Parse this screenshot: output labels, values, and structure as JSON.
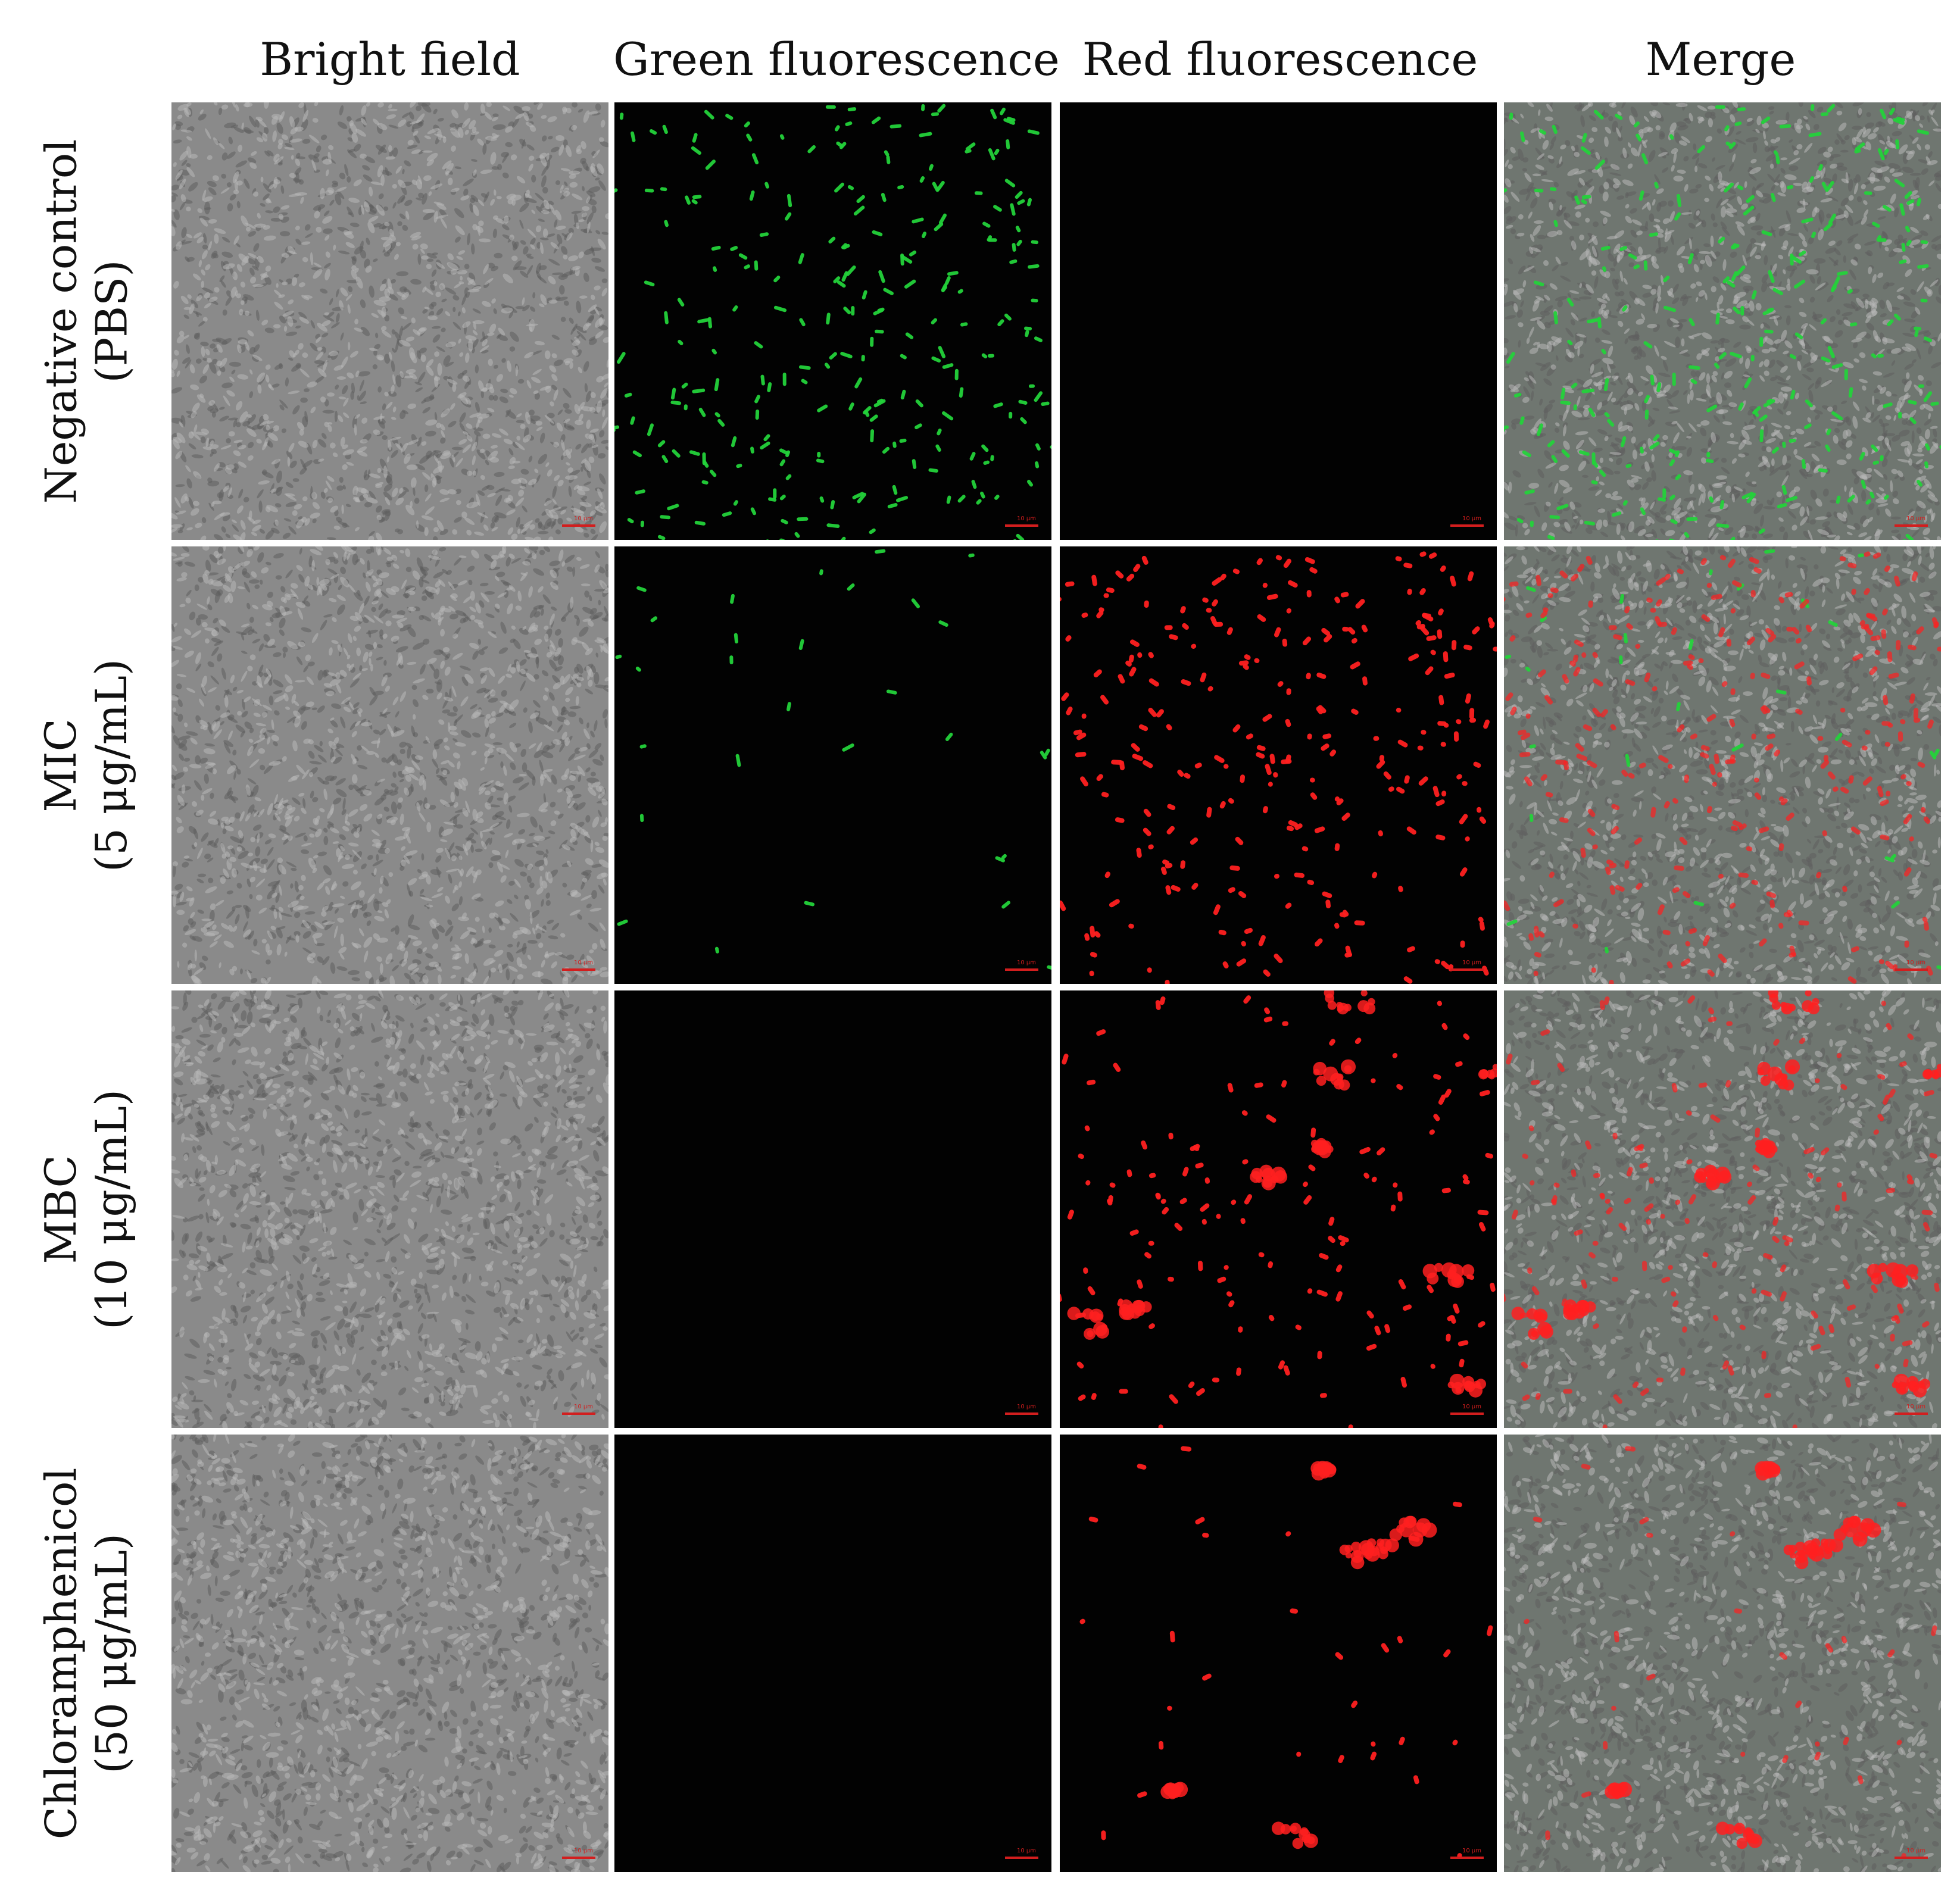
{
  "columns": [
    {
      "label": "Bright field"
    },
    {
      "label": "Green fluorescence"
    },
    {
      "label": "Red fluorescence"
    },
    {
      "label": "Merge"
    }
  ],
  "rows": [
    {
      "line1": "Negative control",
      "line2": "(PBS)",
      "green": "high",
      "red": "none"
    },
    {
      "line1": "MIC",
      "line2": "(5 μg/mL)",
      "green": "low",
      "red": "high"
    },
    {
      "line1": "MBC",
      "line2": "(10 μg/mL)",
      "green": "none",
      "red": "medium-clusters"
    },
    {
      "line1": "Chloramphenicol",
      "line2": "(50 μg/mL)",
      "green": "none",
      "red": "low-clusters"
    }
  ],
  "scale_bar": "10 μm",
  "colors": {
    "bright": "#8a8a8a",
    "dark": "#020202",
    "green": "#23d23a",
    "red": "#ff2020",
    "merge_bg": "#6f7670"
  }
}
